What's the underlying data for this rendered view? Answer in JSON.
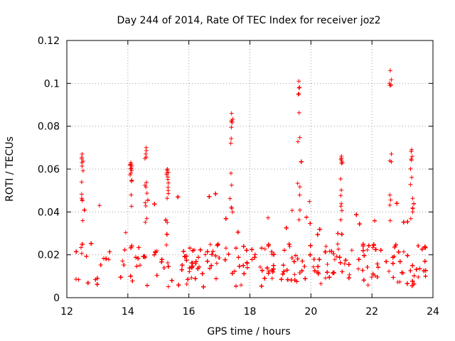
{
  "chart_data": {
    "type": "scatter",
    "title": "Day 244 of 2014, Rate Of TEC Index for receiver joz2",
    "xlabel": "GPS time / hours",
    "ylabel": "ROTI / TECUs",
    "xlim": [
      12,
      24
    ],
    "ylim": [
      0,
      0.12
    ],
    "xticks": [
      12,
      14,
      16,
      18,
      20,
      22,
      24
    ],
    "yticks": [
      0,
      0.02,
      0.04,
      0.06,
      0.08,
      0.1,
      0.12
    ],
    "xtick_labels": [
      "12",
      "14",
      "16",
      "18",
      "20",
      "22",
      "24"
    ],
    "ytick_labels": [
      "0",
      "0.02",
      "0.04",
      "0.06",
      "0.08",
      "0.1",
      "0.12"
    ],
    "grid": true,
    "marker": "+",
    "color": "#ff0000",
    "x_data_range": [
      12.3,
      23.8
    ],
    "baseline_band": [
      0.005,
      0.025
    ],
    "peaks": [
      {
        "x": 12.5,
        "y": 0.067
      },
      {
        "x": 14.1,
        "y": 0.063
      },
      {
        "x": 14.6,
        "y": 0.07
      },
      {
        "x": 15.3,
        "y": 0.06
      },
      {
        "x": 17.4,
        "y": 0.086
      },
      {
        "x": 19.6,
        "y": 0.101
      },
      {
        "x": 21.0,
        "y": 0.066
      },
      {
        "x": 22.6,
        "y": 0.106
      },
      {
        "x": 23.3,
        "y": 0.069
      }
    ]
  }
}
